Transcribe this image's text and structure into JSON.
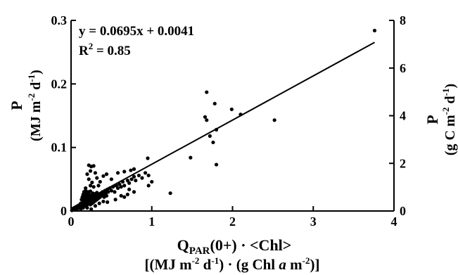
{
  "chart_data": {
    "type": "scatter",
    "title": "",
    "xlabel": {
      "line1": {
        "main": "Q",
        "sub": "PAR",
        "rest": "(0+) · <Chl>"
      },
      "line2": [
        {
          "t": "[(MJ m"
        },
        {
          "t": "-2",
          "sup": true
        },
        {
          "t": " d"
        },
        {
          "t": "-1",
          "sup": true
        },
        {
          "t": ") · (g Chl "
        },
        {
          "t": "a",
          "italic": true
        },
        {
          "t": " m"
        },
        {
          "t": "-2",
          "sup": true
        },
        {
          "t": ")]"
        }
      ]
    },
    "ylabel_left": {
      "line1": "P",
      "line2": [
        {
          "t": "(MJ m"
        },
        {
          "t": "-2",
          "sup": true
        },
        {
          "t": " d"
        },
        {
          "t": "-1",
          "sup": true
        },
        {
          "t": ")"
        }
      ]
    },
    "ylabel_right": {
      "line1": "P",
      "line2": [
        {
          "t": "(g C m"
        },
        {
          "t": "-2",
          "sup": true
        },
        {
          "t": " d"
        },
        {
          "t": "-1",
          "sup": true
        },
        {
          "t": ")"
        }
      ]
    },
    "xlim": [
      0,
      4
    ],
    "ylim": [
      0,
      0.3
    ],
    "y2lim": [
      0,
      8
    ],
    "xticks": [
      0,
      1,
      2,
      3,
      4
    ],
    "yticks": [
      0,
      0.1,
      0.2,
      0.3
    ],
    "yticklabels": [
      "0",
      "0.1",
      "0.2",
      "0.3"
    ],
    "y2ticks": [
      0,
      2,
      4,
      6,
      8
    ],
    "grid": false,
    "equation": "y = 0.0695x + 0.0041",
    "r2": {
      "base": "R",
      "sup": "2",
      "rest": " = 0.85"
    },
    "regression": {
      "slope": 0.0695,
      "intercept": 0.0041,
      "x_range": [
        0,
        3.76
      ]
    },
    "points": [
      [
        0.01,
        0.001
      ],
      [
        0.02,
        0.002
      ],
      [
        0.03,
        0.004
      ],
      [
        0.04,
        0.003
      ],
      [
        0.05,
        0.005
      ],
      [
        0.06,
        0.002
      ],
      [
        0.07,
        0.006
      ],
      [
        0.08,
        0.004
      ],
      [
        0.09,
        0.008
      ],
      [
        0.1,
        0.005
      ],
      [
        0.11,
        0.01
      ],
      [
        0.12,
        0.003
      ],
      [
        0.12,
        0.012
      ],
      [
        0.13,
        0.007
      ],
      [
        0.13,
        0.018
      ],
      [
        0.14,
        0.01
      ],
      [
        0.14,
        0.022
      ],
      [
        0.15,
        0.005
      ],
      [
        0.15,
        0.015
      ],
      [
        0.15,
        0.026
      ],
      [
        0.16,
        0.012
      ],
      [
        0.16,
        0.02
      ],
      [
        0.16,
        0.03
      ],
      [
        0.17,
        0.008
      ],
      [
        0.17,
        0.017
      ],
      [
        0.17,
        0.025
      ],
      [
        0.18,
        0.014
      ],
      [
        0.18,
        0.022
      ],
      [
        0.18,
        0.032
      ],
      [
        0.19,
        0.01
      ],
      [
        0.19,
        0.019
      ],
      [
        0.19,
        0.028
      ],
      [
        0.2,
        0.016
      ],
      [
        0.2,
        0.024
      ],
      [
        0.2,
        0.005
      ],
      [
        0.21,
        0.012
      ],
      [
        0.21,
        0.02
      ],
      [
        0.21,
        0.03
      ],
      [
        0.22,
        0.018
      ],
      [
        0.22,
        0.026
      ],
      [
        0.23,
        0.014
      ],
      [
        0.23,
        0.023
      ],
      [
        0.24,
        0.01
      ],
      [
        0.24,
        0.02
      ],
      [
        0.24,
        0.031
      ],
      [
        0.25,
        0.016
      ],
      [
        0.25,
        0.025
      ],
      [
        0.26,
        0.012
      ],
      [
        0.26,
        0.022
      ],
      [
        0.27,
        0.018
      ],
      [
        0.27,
        0.028
      ],
      [
        0.28,
        0.014
      ],
      [
        0.28,
        0.024
      ],
      [
        0.29,
        0.02
      ],
      [
        0.3,
        0.016
      ],
      [
        0.3,
        0.027
      ],
      [
        0.31,
        0.022
      ],
      [
        0.32,
        0.018
      ],
      [
        0.32,
        0.029
      ],
      [
        0.33,
        0.024
      ],
      [
        0.34,
        0.02
      ],
      [
        0.35,
        0.026
      ],
      [
        0.36,
        0.022
      ],
      [
        0.37,
        0.028
      ],
      [
        0.38,
        0.024
      ],
      [
        0.39,
        0.03
      ],
      [
        0.4,
        0.026
      ],
      [
        0.41,
        0.022
      ],
      [
        0.42,
        0.032
      ],
      [
        0.43,
        0.028
      ],
      [
        0.44,
        0.024
      ],
      [
        0.45,
        0.034
      ],
      [
        0.46,
        0.03
      ],
      [
        0.48,
        0.036
      ],
      [
        0.5,
        0.032
      ],
      [
        0.52,
        0.038
      ],
      [
        0.54,
        0.03
      ],
      [
        0.56,
        0.04
      ],
      [
        0.58,
        0.036
      ],
      [
        0.6,
        0.042
      ],
      [
        0.62,
        0.038
      ],
      [
        0.64,
        0.046
      ],
      [
        0.66,
        0.04
      ],
      [
        0.7,
        0.048
      ],
      [
        0.72,
        0.044
      ],
      [
        0.75,
        0.05
      ],
      [
        0.78,
        0.054
      ],
      [
        0.8,
        0.048
      ],
      [
        0.84,
        0.056
      ],
      [
        0.88,
        0.052
      ],
      [
        0.92,
        0.06
      ],
      [
        0.96,
        0.056
      ],
      [
        0.22,
        0.072
      ],
      [
        0.25,
        0.07
      ],
      [
        0.28,
        0.071
      ],
      [
        0.24,
        0.063
      ],
      [
        0.2,
        0.058
      ],
      [
        0.3,
        0.06
      ],
      [
        0.22,
        0.05
      ],
      [
        0.26,
        0.045
      ],
      [
        0.32,
        0.052
      ],
      [
        0.36,
        0.046
      ],
      [
        0.4,
        0.055
      ],
      [
        0.44,
        0.058
      ],
      [
        0.5,
        0.05
      ],
      [
        0.24,
        0.04
      ],
      [
        0.18,
        0.036
      ],
      [
        0.28,
        0.038
      ],
      [
        0.34,
        0.04
      ],
      [
        0.2,
        0.01
      ],
      [
        0.25,
        0.003
      ],
      [
        0.3,
        0.008
      ],
      [
        0.35,
        0.012
      ],
      [
        0.4,
        0.015
      ],
      [
        0.45,
        0.014
      ],
      [
        0.55,
        0.018
      ],
      [
        0.62,
        0.024
      ],
      [
        0.66,
        0.022
      ],
      [
        0.7,
        0.026
      ],
      [
        0.58,
        0.06
      ],
      [
        0.66,
        0.062
      ],
      [
        0.74,
        0.064
      ],
      [
        0.78,
        0.066
      ],
      [
        0.72,
        0.034
      ],
      [
        0.78,
        0.03
      ],
      [
        0.95,
        0.083
      ],
      [
        1.0,
        0.046
      ],
      [
        0.96,
        0.04
      ],
      [
        1.23,
        0.028
      ],
      [
        1.48,
        0.084
      ],
      [
        1.68,
        0.187
      ],
      [
        1.66,
        0.148
      ],
      [
        1.68,
        0.143
      ],
      [
        1.72,
        0.118
      ],
      [
        1.76,
        0.108
      ],
      [
        1.78,
        0.169
      ],
      [
        1.8,
        0.128
      ],
      [
        1.8,
        0.073
      ],
      [
        1.99,
        0.16
      ],
      [
        2.1,
        0.152
      ],
      [
        2.52,
        0.143
      ],
      [
        3.76,
        0.284
      ]
    ]
  }
}
